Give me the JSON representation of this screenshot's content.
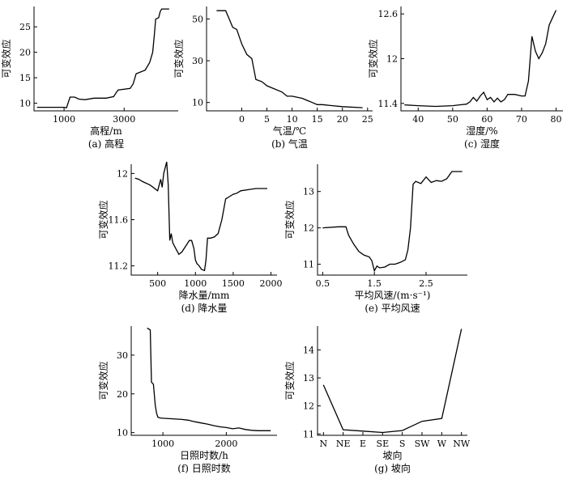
{
  "chart_data": [
    {
      "type": "line",
      "caption": "(a) 高程",
      "xlabel": "高程/m",
      "ylabel": "可变效应",
      "xlim": [
        0,
        4800
      ],
      "ylim": [
        8.5,
        29
      ],
      "xticks": [
        1000,
        3000
      ],
      "yticks": [
        10,
        15,
        20,
        25
      ],
      "series": [
        {
          "x": [
            100,
            1000,
            1080,
            1150,
            1200,
            1350,
            1500,
            1700,
            2000,
            2400,
            2650,
            2750,
            2800,
            3200,
            3300,
            3400,
            3700,
            3850,
            3950,
            4000,
            4050,
            4150,
            4200,
            4250,
            4300,
            4500
          ],
          "y": [
            9.2,
            9.2,
            9.1,
            10.3,
            11.2,
            11.2,
            10.8,
            10.7,
            11.0,
            11.0,
            11.3,
            12.2,
            12.6,
            12.9,
            13.8,
            15.8,
            16.5,
            18.0,
            20.0,
            23.0,
            26.5,
            26.8,
            28.0,
            28.5,
            28.5,
            28.5
          ]
        }
      ]
    },
    {
      "type": "line",
      "caption": "(b) 气温",
      "xlabel": "气温/℃",
      "ylabel": "可变效应",
      "xlim": [
        -7,
        26
      ],
      "ylim": [
        6,
        56
      ],
      "xticks": [
        0,
        5,
        10,
        15,
        20,
        25
      ],
      "yticks": [
        10,
        30,
        50
      ],
      "series": [
        {
          "x": [
            -5,
            -3.2,
            -2.5,
            -1.8,
            -1,
            0,
            1,
            2,
            2.8,
            4,
            5,
            6,
            8,
            9,
            10,
            12,
            14,
            15,
            16,
            18,
            20,
            24
          ],
          "y": [
            54,
            54,
            50,
            46,
            45,
            38,
            33,
            31,
            21,
            20,
            18,
            17,
            15,
            13,
            13,
            12,
            10,
            9,
            9,
            8.5,
            8,
            7.5
          ]
        }
      ]
    },
    {
      "type": "line",
      "caption": "(c) 湿度",
      "xlabel": "湿度/%",
      "ylabel": "可变效应",
      "xlim": [
        35,
        82
      ],
      "ylim": [
        11.3,
        12.7
      ],
      "xticks": [
        40,
        50,
        60,
        70,
        80
      ],
      "yticks": [
        11.4,
        12.0,
        12.6
      ],
      "series": [
        {
          "x": [
            36,
            40,
            45,
            50,
            52,
            54,
            55,
            56,
            57,
            58,
            59,
            60,
            61,
            62,
            63,
            64,
            65,
            66,
            68,
            70,
            71,
            72,
            73,
            74,
            75,
            76,
            77,
            78,
            79,
            80
          ],
          "y": [
            11.38,
            11.37,
            11.36,
            11.37,
            11.38,
            11.39,
            11.42,
            11.48,
            11.43,
            11.5,
            11.55,
            11.45,
            11.48,
            11.42,
            11.47,
            11.42,
            11.45,
            11.52,
            11.52,
            11.5,
            11.5,
            11.7,
            12.3,
            12.1,
            12.0,
            12.08,
            12.2,
            12.45,
            12.55,
            12.65
          ]
        }
      ]
    },
    {
      "type": "line",
      "caption": "(d) 降水量",
      "xlabel": "降水量/mm",
      "ylabel": "可变效应",
      "xlim": [
        150,
        2080
      ],
      "ylim": [
        11.12,
        12.08
      ],
      "xticks": [
        500,
        1000,
        1500,
        2000
      ],
      "yticks": [
        11.2,
        11.6,
        12.0
      ],
      "series": [
        {
          "x": [
            200,
            250,
            300,
            400,
            500,
            540,
            560,
            580,
            620,
            640,
            660,
            680,
            700,
            740,
            780,
            820,
            880,
            920,
            950,
            980,
            1000,
            1020,
            1050,
            1080,
            1120,
            1140,
            1160,
            1200,
            1250,
            1300,
            1350,
            1400,
            1450,
            1500,
            1550,
            1600,
            1700,
            1800,
            1950
          ],
          "y": [
            11.96,
            11.95,
            11.93,
            11.9,
            11.85,
            11.95,
            11.88,
            12.0,
            12.1,
            11.9,
            11.42,
            11.48,
            11.4,
            11.35,
            11.3,
            11.32,
            11.38,
            11.42,
            11.42,
            11.35,
            11.25,
            11.22,
            11.2,
            11.17,
            11.16,
            11.25,
            11.44,
            11.44,
            11.45,
            11.48,
            11.6,
            11.78,
            11.8,
            11.82,
            11.83,
            11.85,
            11.86,
            11.87,
            11.87
          ]
        }
      ]
    },
    {
      "type": "line",
      "caption": "(e) 平均风速",
      "xlabel": "平均风速/(m·s⁻¹)",
      "ylabel": "可变效应",
      "xlim": [
        0.4,
        3.3
      ],
      "ylim": [
        10.7,
        13.75
      ],
      "xticks": [
        0.5,
        1.5,
        2.5
      ],
      "yticks": [
        11,
        12,
        13
      ],
      "series": [
        {
          "x": [
            0.5,
            0.8,
            0.95,
            1.0,
            1.1,
            1.2,
            1.3,
            1.4,
            1.45,
            1.5,
            1.55,
            1.6,
            1.7,
            1.8,
            1.9,
            2.0,
            2.1,
            2.15,
            2.2,
            2.25,
            2.3,
            2.4,
            2.5,
            2.6,
            2.7,
            2.8,
            2.9,
            3.0,
            3.2
          ],
          "y": [
            12.0,
            12.03,
            12.03,
            11.8,
            11.55,
            11.35,
            11.25,
            11.2,
            11.1,
            10.82,
            10.95,
            10.9,
            10.92,
            11.0,
            11.0,
            11.05,
            11.12,
            11.4,
            12.0,
            13.2,
            13.28,
            13.22,
            13.4,
            13.25,
            13.3,
            13.28,
            13.35,
            13.55,
            13.55
          ]
        }
      ]
    },
    {
      "type": "line",
      "caption": "(f) 日照时数",
      "xlabel": "日照时数/h",
      "ylabel": "可变效应",
      "xlim": [
        500,
        2800
      ],
      "ylim": [
        9.3,
        37.5
      ],
      "xticks": [
        1000,
        2000
      ],
      "yticks": [
        10,
        20,
        30
      ],
      "series": [
        {
          "x": [
            750,
            800,
            820,
            850,
            880,
            900,
            920,
            950,
            1000,
            1100,
            1200,
            1300,
            1400,
            1500,
            1600,
            1700,
            1800,
            1900,
            2000,
            2100,
            2200,
            2300,
            2400,
            2500,
            2600,
            2700
          ],
          "y": [
            37,
            36.5,
            23,
            22.5,
            17,
            15,
            14,
            13.8,
            13.7,
            13.6,
            13.5,
            13.4,
            13.2,
            12.8,
            12.5,
            12.2,
            11.8,
            11.5,
            11.3,
            11.0,
            11.2,
            10.8,
            10.6,
            10.5,
            10.5,
            10.5
          ]
        }
      ]
    },
    {
      "type": "line",
      "caption": "(g) 坡向",
      "xlabel": "坡向",
      "ylabel": "可变效应",
      "categories": [
        "N",
        "NE",
        "E",
        "SE",
        "S",
        "SW",
        "W",
        "NW"
      ],
      "ylim": [
        10.95,
        14.85
      ],
      "yticks": [
        11,
        12,
        13,
        14
      ],
      "series": [
        {
          "values": [
            12.75,
            11.15,
            11.1,
            11.05,
            11.12,
            11.45,
            11.55,
            14.75
          ]
        }
      ]
    }
  ]
}
